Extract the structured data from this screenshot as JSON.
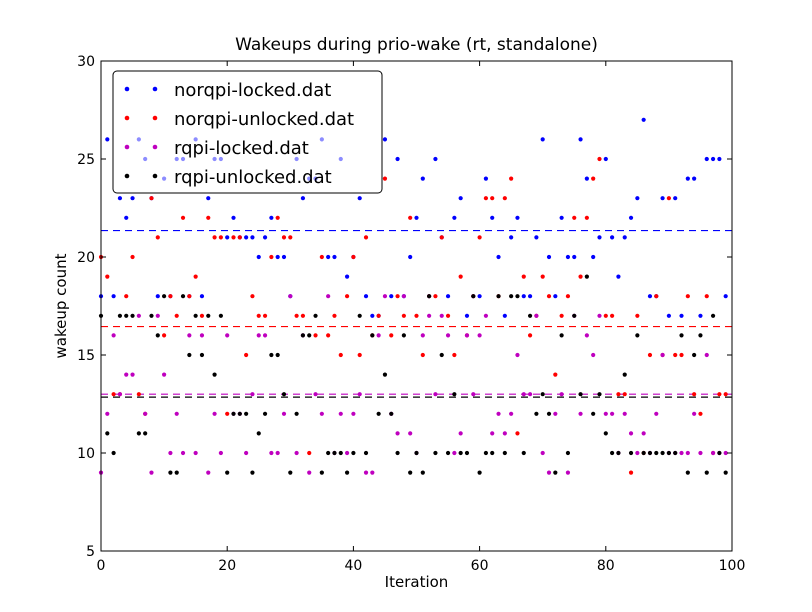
{
  "chart_data": {
    "type": "scatter",
    "title": "Wakeups during prio-wake (rt, standalone)",
    "xlabel": "Iteration",
    "ylabel": "wakeup count",
    "xlim": [
      0,
      100
    ],
    "ylim": [
      5,
      30
    ],
    "xticks": [
      0,
      20,
      40,
      60,
      80,
      100
    ],
    "yticks": [
      5,
      10,
      15,
      20,
      25,
      30
    ],
    "grid": false,
    "legend_position": "top-left",
    "series": [
      {
        "name": "norqpi-locked.dat",
        "color": "#0000ff",
        "mean": 21.35,
        "values": [
          18,
          26,
          18,
          23,
          22,
          23,
          26,
          25,
          23,
          18,
          24,
          18,
          25,
          25,
          18,
          26,
          18,
          23,
          25,
          25,
          21,
          22,
          21,
          21,
          21,
          20,
          21,
          22,
          20,
          20,
          18,
          25,
          23,
          24,
          24,
          26,
          20,
          20,
          25,
          19,
          20,
          23,
          18,
          17,
          17,
          26,
          18,
          25,
          18,
          20,
          22,
          24,
          18,
          25,
          21,
          18,
          22,
          23,
          17,
          18,
          18,
          24,
          22,
          20,
          17,
          21,
          22,
          18,
          18,
          21,
          26,
          20,
          18,
          22,
          20,
          20,
          26,
          24,
          20,
          21,
          25,
          21,
          19,
          21,
          22,
          23,
          27,
          18,
          18,
          23,
          17,
          23,
          17,
          24,
          24,
          17,
          25,
          25,
          25,
          18
        ]
      },
      {
        "name": "norqpi-unlocked.dat",
        "color": "#ff0000",
        "mean": 16.45,
        "values": [
          20,
          19,
          13,
          13,
          18,
          20,
          13,
          12,
          23,
          21,
          16,
          18,
          17,
          22,
          18,
          19,
          17,
          22,
          21,
          21,
          12,
          21,
          21,
          15,
          18,
          17,
          17,
          20,
          22,
          21,
          21,
          17,
          17,
          10,
          16,
          20,
          16,
          17,
          15,
          18,
          20,
          15,
          21,
          16,
          17,
          24,
          16,
          18,
          17,
          22,
          17,
          15,
          18,
          18,
          21,
          17,
          15,
          19,
          16,
          18,
          21,
          23,
          23,
          18,
          23,
          24,
          11,
          19,
          16,
          17,
          19,
          18,
          14,
          17,
          18,
          22,
          19,
          22,
          24,
          25,
          17,
          17,
          13,
          13,
          9,
          17,
          10,
          15,
          18,
          15,
          23,
          15,
          15,
          18,
          13,
          12,
          18,
          10,
          13,
          13
        ]
      },
      {
        "name": "rqpi-locked.dat",
        "color": "#bf00bf",
        "mean": 13.0,
        "values": [
          9,
          12,
          16,
          13,
          14,
          14,
          17,
          12,
          9,
          17,
          14,
          10,
          12,
          10,
          16,
          10,
          16,
          9,
          12,
          10,
          16,
          12,
          12,
          10,
          13,
          16,
          16,
          10,
          10,
          12,
          18,
          10,
          16,
          9,
          13,
          12,
          18,
          10,
          12,
          10,
          12,
          13,
          9,
          9,
          16,
          18,
          12,
          11,
          18,
          11,
          10,
          16,
          17,
          13,
          17,
          16,
          10,
          11,
          16,
          13,
          16,
          17,
          11,
          12,
          11,
          12,
          15,
          13,
          13,
          17,
          10,
          9,
          12,
          13,
          9,
          17,
          12,
          16,
          15,
          17,
          12,
          12,
          10,
          12,
          11,
          10,
          11,
          10,
          12,
          15,
          10,
          10,
          10,
          10,
          12,
          10,
          15,
          10,
          10,
          10
        ]
      },
      {
        "name": "rqpi-unlocked.dat",
        "color": "#000000",
        "mean": 12.85,
        "values": [
          17,
          11,
          10,
          17,
          17,
          17,
          11,
          11,
          17,
          16,
          18,
          9,
          9,
          18,
          15,
          17,
          15,
          17,
          14,
          17,
          9,
          12,
          12,
          12,
          9,
          11,
          12,
          15,
          15,
          13,
          9,
          12,
          16,
          16,
          17,
          9,
          10,
          10,
          10,
          9,
          10,
          17,
          10,
          16,
          12,
          14,
          12,
          10,
          16,
          9,
          10,
          9,
          18,
          10,
          15,
          10,
          13,
          10,
          10,
          18,
          9,
          10,
          10,
          18,
          10,
          18,
          18,
          10,
          17,
          12,
          13,
          12,
          9,
          16,
          10,
          17,
          13,
          19,
          12,
          13,
          11,
          10,
          10,
          14,
          10,
          16,
          10,
          10,
          10,
          10,
          10,
          10,
          16,
          9,
          15,
          16,
          9,
          17,
          10,
          9
        ]
      }
    ]
  }
}
